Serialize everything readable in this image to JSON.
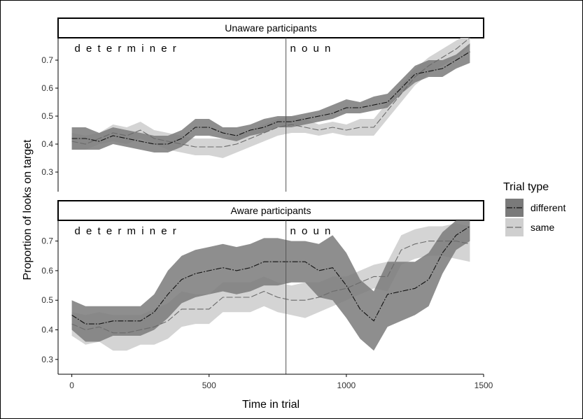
{
  "chart_data": {
    "type": "line",
    "xlabel": "Time in trial",
    "ylabel": "Proportion of looks on target",
    "xlim": [
      -50,
      1500
    ],
    "x_ticks": [
      0,
      500,
      1000,
      1500
    ],
    "x_tick_labels": [
      "0",
      "500",
      "1000",
      "1500"
    ],
    "y_ticks": [
      0.3,
      0.4,
      0.5,
      0.6,
      0.7
    ],
    "y_tick_labels": [
      "0.3",
      "0.4",
      "0.5",
      "0.6",
      "0.7"
    ],
    "grid": false,
    "legend": {
      "title": "Trial type",
      "placement": "right",
      "entries": [
        "different",
        "same"
      ]
    },
    "vline_x": 780,
    "colors": {
      "different_line": "#111111",
      "different_band": "#7a7a7a",
      "same_line": "#6a6a6a",
      "same_band": "#cfcfcf",
      "strip_border": "#000000"
    },
    "panels": [
      {
        "strip": "Unaware participants",
        "ylim": [
          0.23,
          0.78
        ],
        "annotations": [
          {
            "label": "d e t e r m i n e r",
            "x": 10
          },
          {
            "label": "n o u n",
            "x": 795
          }
        ],
        "series": [
          {
            "name": "different",
            "x": [
              0,
              50,
              100,
              150,
              200,
              250,
              300,
              350,
              400,
              450,
              500,
              550,
              600,
              650,
              700,
              750,
              800,
              850,
              900,
              950,
              1000,
              1050,
              1100,
              1150,
              1200,
              1250,
              1300,
              1350,
              1400,
              1450
            ],
            "y": [
              0.42,
              0.42,
              0.41,
              0.43,
              0.42,
              0.41,
              0.4,
              0.4,
              0.42,
              0.46,
              0.46,
              0.44,
              0.43,
              0.45,
              0.46,
              0.48,
              0.48,
              0.49,
              0.5,
              0.51,
              0.53,
              0.53,
              0.54,
              0.55,
              0.6,
              0.65,
              0.66,
              0.67,
              0.7,
              0.73
            ],
            "lower": [
              0.38,
              0.38,
              0.38,
              0.4,
              0.39,
              0.38,
              0.37,
              0.37,
              0.39,
              0.43,
              0.43,
              0.42,
              0.41,
              0.43,
              0.44,
              0.46,
              0.46,
              0.47,
              0.48,
              0.49,
              0.51,
              0.51,
              0.52,
              0.53,
              0.58,
              0.62,
              0.64,
              0.64,
              0.67,
              0.69
            ],
            "upper": [
              0.46,
              0.46,
              0.44,
              0.46,
              0.45,
              0.44,
              0.43,
              0.43,
              0.45,
              0.49,
              0.49,
              0.46,
              0.46,
              0.47,
              0.49,
              0.5,
              0.5,
              0.51,
              0.52,
              0.54,
              0.56,
              0.55,
              0.57,
              0.58,
              0.63,
              0.68,
              0.7,
              0.7,
              0.72,
              0.76
            ]
          },
          {
            "name": "same",
            "x": [
              0,
              50,
              100,
              150,
              200,
              250,
              300,
              350,
              400,
              450,
              500,
              550,
              600,
              650,
              700,
              750,
              800,
              850,
              900,
              950,
              1000,
              1050,
              1100,
              1150,
              1200,
              1250,
              1300,
              1350,
              1400,
              1450
            ],
            "y": [
              0.41,
              0.4,
              0.42,
              0.44,
              0.43,
              0.45,
              0.42,
              0.41,
              0.4,
              0.39,
              0.39,
              0.39,
              0.4,
              0.42,
              0.44,
              0.46,
              0.47,
              0.46,
              0.45,
              0.46,
              0.45,
              0.46,
              0.46,
              0.52,
              0.58,
              0.64,
              0.68,
              0.71,
              0.74,
              0.78
            ],
            "lower": [
              0.38,
              0.38,
              0.4,
              0.41,
              0.4,
              0.42,
              0.4,
              0.38,
              0.37,
              0.36,
              0.36,
              0.35,
              0.37,
              0.39,
              0.41,
              0.43,
              0.44,
              0.44,
              0.43,
              0.44,
              0.43,
              0.43,
              0.43,
              0.49,
              0.55,
              0.61,
              0.65,
              0.68,
              0.71,
              0.75
            ],
            "upper": [
              0.44,
              0.43,
              0.44,
              0.47,
              0.46,
              0.48,
              0.45,
              0.44,
              0.43,
              0.42,
              0.42,
              0.42,
              0.43,
              0.45,
              0.47,
              0.49,
              0.5,
              0.49,
              0.47,
              0.48,
              0.47,
              0.49,
              0.49,
              0.55,
              0.61,
              0.67,
              0.71,
              0.74,
              0.77,
              0.8
            ]
          }
        ]
      },
      {
        "strip": "Aware participants",
        "ylim": [
          0.25,
          0.77
        ],
        "annotations": [
          {
            "label": "d e t e r m i n e r",
            "x": 10
          },
          {
            "label": "n o u n",
            "x": 795
          }
        ],
        "series": [
          {
            "name": "different",
            "x": [
              0,
              50,
              100,
              150,
              200,
              250,
              300,
              350,
              400,
              450,
              500,
              550,
              600,
              650,
              700,
              750,
              800,
              850,
              900,
              950,
              1000,
              1050,
              1100,
              1150,
              1200,
              1250,
              1300,
              1350,
              1400,
              1450
            ],
            "y": [
              0.45,
              0.42,
              0.42,
              0.43,
              0.43,
              0.43,
              0.46,
              0.52,
              0.57,
              0.59,
              0.6,
              0.61,
              0.6,
              0.61,
              0.63,
              0.63,
              0.63,
              0.63,
              0.6,
              0.61,
              0.55,
              0.47,
              0.43,
              0.52,
              0.53,
              0.54,
              0.57,
              0.66,
              0.72,
              0.75
            ],
            "lower": [
              0.4,
              0.36,
              0.36,
              0.38,
              0.38,
              0.38,
              0.4,
              0.44,
              0.49,
              0.51,
              0.52,
              0.53,
              0.52,
              0.53,
              0.55,
              0.55,
              0.56,
              0.56,
              0.51,
              0.5,
              0.44,
              0.37,
              0.33,
              0.41,
              0.43,
              0.45,
              0.48,
              0.59,
              0.67,
              0.7
            ],
            "upper": [
              0.5,
              0.48,
              0.48,
              0.48,
              0.48,
              0.48,
              0.52,
              0.6,
              0.65,
              0.67,
              0.68,
              0.69,
              0.68,
              0.69,
              0.71,
              0.71,
              0.7,
              0.7,
              0.69,
              0.72,
              0.66,
              0.57,
              0.53,
              0.63,
              0.63,
              0.63,
              0.66,
              0.73,
              0.77,
              0.8
            ]
          },
          {
            "name": "same",
            "x": [
              0,
              50,
              100,
              150,
              200,
              250,
              300,
              350,
              400,
              450,
              500,
              550,
              600,
              650,
              700,
              750,
              800,
              850,
              900,
              950,
              1000,
              1050,
              1100,
              1150,
              1200,
              1250,
              1300,
              1350,
              1400,
              1450
            ],
            "y": [
              0.42,
              0.4,
              0.41,
              0.39,
              0.39,
              0.4,
              0.41,
              0.43,
              0.47,
              0.47,
              0.47,
              0.51,
              0.51,
              0.51,
              0.53,
              0.51,
              0.5,
              0.5,
              0.51,
              0.53,
              0.54,
              0.56,
              0.58,
              0.58,
              0.67,
              0.69,
              0.7,
              0.7,
              0.7,
              0.69
            ],
            "lower": [
              0.38,
              0.35,
              0.36,
              0.33,
              0.33,
              0.35,
              0.35,
              0.37,
              0.41,
              0.42,
              0.42,
              0.46,
              0.46,
              0.46,
              0.48,
              0.46,
              0.45,
              0.44,
              0.46,
              0.48,
              0.5,
              0.52,
              0.54,
              0.53,
              0.62,
              0.64,
              0.65,
              0.65,
              0.64,
              0.63
            ],
            "upper": [
              0.46,
              0.45,
              0.46,
              0.45,
              0.45,
              0.45,
              0.47,
              0.49,
              0.53,
              0.52,
              0.52,
              0.56,
              0.56,
              0.56,
              0.58,
              0.56,
              0.55,
              0.56,
              0.56,
              0.58,
              0.58,
              0.6,
              0.62,
              0.63,
              0.72,
              0.74,
              0.75,
              0.75,
              0.76,
              0.75
            ]
          }
        ]
      }
    ]
  }
}
